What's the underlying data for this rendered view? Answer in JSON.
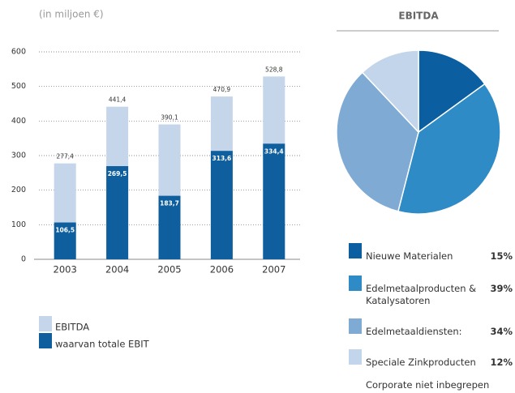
{
  "chart_data": [
    {
      "type": "bar",
      "subtitle": "(in miljoen €)",
      "categories": [
        "2003",
        "2004",
        "2005",
        "2006",
        "2007"
      ],
      "series": [
        {
          "name": "EBITDA",
          "color": "#c5d6ea",
          "values": [
            277.4,
            441.4,
            390.1,
            470.9,
            528.8
          ],
          "value_labels": [
            "277,4",
            "441,4",
            "390,1",
            "470,9",
            "528,8"
          ]
        },
        {
          "name": "waarvan totale EBIT",
          "color": "#0f5f9f",
          "values": [
            106.5,
            269.5,
            183.7,
            313.6,
            334.4
          ],
          "value_labels": [
            "106,5",
            "269,5",
            "183,7",
            "313,6",
            "334,4"
          ]
        }
      ],
      "ylim": [
        0,
        600
      ],
      "yticks": [
        0,
        100,
        200,
        300,
        400,
        500,
        600
      ],
      "grid": true
    },
    {
      "type": "pie",
      "title": "EBITDA",
      "categories": [
        "Nieuwe Materialen",
        "Edelmetaalproducten & Katalysatoren",
        "Edelmetaaldiensten:",
        "Speciale Zinkproducten"
      ],
      "values": [
        15,
        39,
        34,
        12
      ],
      "value_labels": [
        "15%",
        "39%",
        "34%",
        "12%"
      ],
      "colors": [
        "#0b5fa0",
        "#2e8bc6",
        "#7eaad3",
        "#c2d5ea"
      ],
      "note": "Corporate niet inbegrepen"
    }
  ]
}
